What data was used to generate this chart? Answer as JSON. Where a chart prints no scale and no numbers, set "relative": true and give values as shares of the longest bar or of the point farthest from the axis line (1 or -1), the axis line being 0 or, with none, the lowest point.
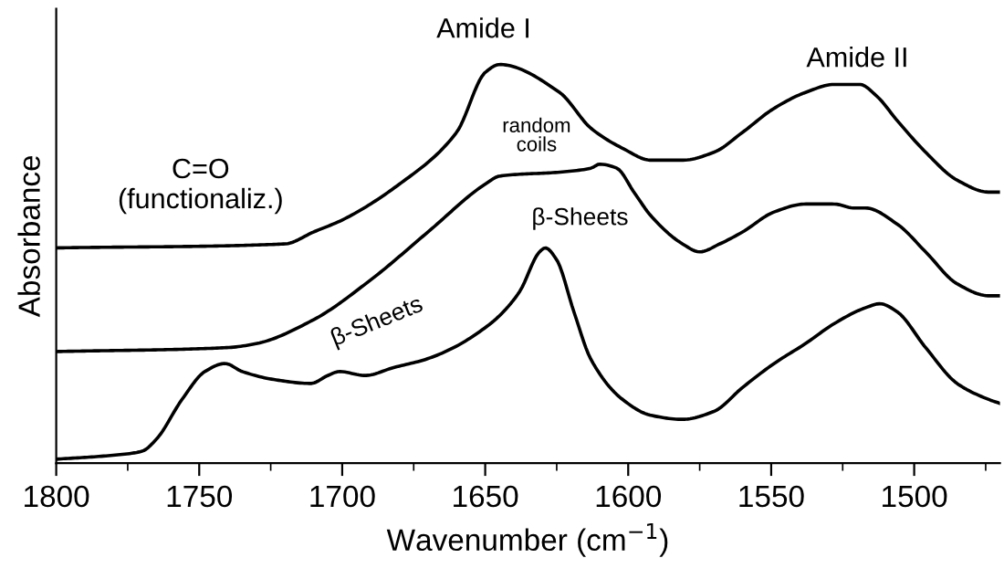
{
  "chart_data": {
    "type": "line",
    "relative": true,
    "xlabel": "Wavenumber (cm$^{−1}$)",
    "ylabel": "Absorbance",
    "xlim": [
      1800,
      1470
    ],
    "xticks": [
      1800,
      {
        "value": 1775,
        "label": null
      },
      1750,
      {
        "value": 1725,
        "label": null
      },
      1700,
      {
        "value": 1675,
        "label": null
      },
      1650,
      {
        "value": 1625,
        "label": null
      },
      1600,
      {
        "value": 1575,
        "label": null
      },
      1550,
      {
        "value": 1525,
        "label": null
      },
      1500,
      {
        "value": 1475,
        "label": null
      }
    ],
    "grid": false,
    "legend": false,
    "marker": "none",
    "line_style": "solid",
    "series": [
      {
        "color": "#000000",
        "x": [
          1800,
          1720,
          1710,
          1700,
          1680,
          1660,
          1650,
          1645,
          1624,
          1613,
          1602,
          1592,
          1581,
          1570,
          1560,
          1549,
          1538,
          1528,
          1519,
          1513,
          1506,
          1496,
          1485,
          1474,
          1470
        ],
        "values": [
          0.54,
          0.55,
          0.58,
          0.61,
          0.7,
          0.83,
          0.98,
          1.0,
          0.93,
          0.84,
          0.79,
          0.76,
          0.76,
          0.78,
          0.83,
          0.89,
          0.93,
          0.95,
          0.95,
          0.92,
          0.86,
          0.78,
          0.71,
          0.68,
          0.68
        ]
      },
      {
        "color": "#000000",
        "x": [
          1800,
          1740,
          1730,
          1710,
          1690,
          1670,
          1650,
          1645,
          1624,
          1613,
          1610,
          1604,
          1598,
          1592,
          1581,
          1575,
          1568,
          1560,
          1549,
          1538,
          1528,
          1521,
          1517,
          1506,
          1496,
          1485,
          1474,
          1470
        ],
        "values": [
          0.28,
          0.29,
          0.3,
          0.36,
          0.46,
          0.58,
          0.7,
          0.72,
          0.73,
          0.74,
          0.75,
          0.74,
          0.68,
          0.62,
          0.55,
          0.53,
          0.55,
          0.58,
          0.63,
          0.65,
          0.65,
          0.64,
          0.64,
          0.6,
          0.53,
          0.45,
          0.42,
          0.42
        ]
      },
      {
        "color": "#000000",
        "x": [
          1800,
          1780,
          1770,
          1765,
          1756,
          1748,
          1741,
          1735,
          1724,
          1711,
          1705,
          1701,
          1692,
          1682,
          1671,
          1661,
          1650,
          1645,
          1638,
          1631,
          1629,
          1625,
          1619,
          1613,
          1602,
          1592,
          1581,
          1570,
          1560,
          1549,
          1538,
          1528,
          1517,
          1512,
          1506,
          1496,
          1485,
          1474,
          1470
        ],
        "values": [
          0.01,
          0.02,
          0.03,
          0.06,
          0.16,
          0.23,
          0.25,
          0.23,
          0.21,
          0.2,
          0.22,
          0.23,
          0.22,
          0.24,
          0.26,
          0.29,
          0.34,
          0.37,
          0.43,
          0.53,
          0.54,
          0.51,
          0.38,
          0.26,
          0.16,
          0.12,
          0.11,
          0.13,
          0.19,
          0.25,
          0.3,
          0.35,
          0.39,
          0.4,
          0.38,
          0.29,
          0.2,
          0.16,
          0.15
        ]
      }
    ],
    "annotations": [
      "Amide I",
      "Amide II",
      "C=O\n(functionaliz.)",
      "random\ncoils",
      "β-Sheets",
      "β-Sheets"
    ]
  }
}
